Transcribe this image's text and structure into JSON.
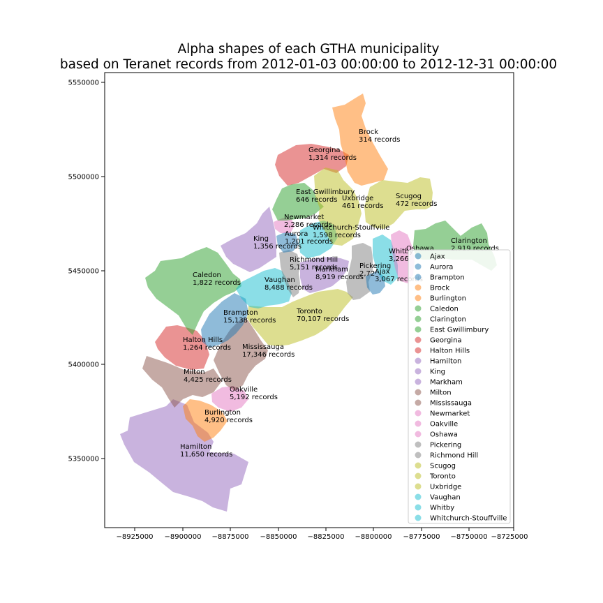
{
  "title_lines": [
    "Alpha shapes of each GTHA municipality",
    "based on Teranet records from 2012-01-03 00:00:00 to 2012-12-31 00:00:00"
  ],
  "x_ticks": [
    "−8925000",
    "−8900000",
    "−8875000",
    "−8850000",
    "−8825000",
    "−8800000",
    "−8775000",
    "−8750000",
    "−8725000"
  ],
  "y_ticks": [
    "5550000",
    "5500000",
    "5450000",
    "5400000",
    "5350000"
  ],
  "colors": {
    "blue": "#1f77b4",
    "orange": "#ff7f0e",
    "green": "#2ca02c",
    "red": "#d62728",
    "purple": "#9467bd",
    "brown": "#8c564b",
    "pink": "#e377c2",
    "gray": "#7f7f7f",
    "olive": "#bcbd22",
    "cyan": "#17becf"
  },
  "municipalities": [
    {
      "name": "Ajax",
      "records": "3,067 records",
      "color": "blue"
    },
    {
      "name": "Aurora",
      "records": "1,201 records",
      "color": "blue"
    },
    {
      "name": "Brampton",
      "records": "15,138 records",
      "color": "blue"
    },
    {
      "name": "Brock",
      "records": "314 records",
      "color": "orange"
    },
    {
      "name": "Burlington",
      "records": "4,920 records",
      "color": "orange"
    },
    {
      "name": "Caledon",
      "records": "1,822 records",
      "color": "green"
    },
    {
      "name": "Clarington",
      "records": "2,919 records",
      "color": "green"
    },
    {
      "name": "East Gwillimbury",
      "records": "646 records",
      "color": "green"
    },
    {
      "name": "Georgina",
      "records": "1,314 records",
      "color": "red"
    },
    {
      "name": "Halton Hills",
      "records": "1,264 records",
      "color": "red"
    },
    {
      "name": "Hamilton",
      "records": "11,650 records",
      "color": "purple"
    },
    {
      "name": "King",
      "records": "1,356 records",
      "color": "purple"
    },
    {
      "name": "Markham",
      "records": "8,919 records",
      "color": "purple"
    },
    {
      "name": "Milton",
      "records": "4,425 records",
      "color": "brown"
    },
    {
      "name": "Mississauga",
      "records": "17,346 records",
      "color": "brown"
    },
    {
      "name": "Newmarket",
      "records": "2,286 records",
      "color": "pink"
    },
    {
      "name": "Oakville",
      "records": "5,192 records",
      "color": "pink"
    },
    {
      "name": "Oshawa",
      "records": "",
      "color": "pink"
    },
    {
      "name": "Pickering",
      "records": "2,72",
      "color": "gray"
    },
    {
      "name": "Richmond Hill",
      "records": "5,151 records",
      "color": "gray"
    },
    {
      "name": "Scugog",
      "records": "472 records",
      "color": "olive"
    },
    {
      "name": "Toronto",
      "records": "70,107 records",
      "color": "olive"
    },
    {
      "name": "Uxbridge",
      "records": "461 records",
      "color": "olive"
    },
    {
      "name": "Vaughan",
      "records": "8,488 records",
      "color": "cyan"
    },
    {
      "name": "Whitby",
      "records": "3,266",
      "color": "cyan"
    },
    {
      "name": "Whitchurch-Stouffville",
      "records": "1,598 records",
      "color": "cyan"
    }
  ]
}
